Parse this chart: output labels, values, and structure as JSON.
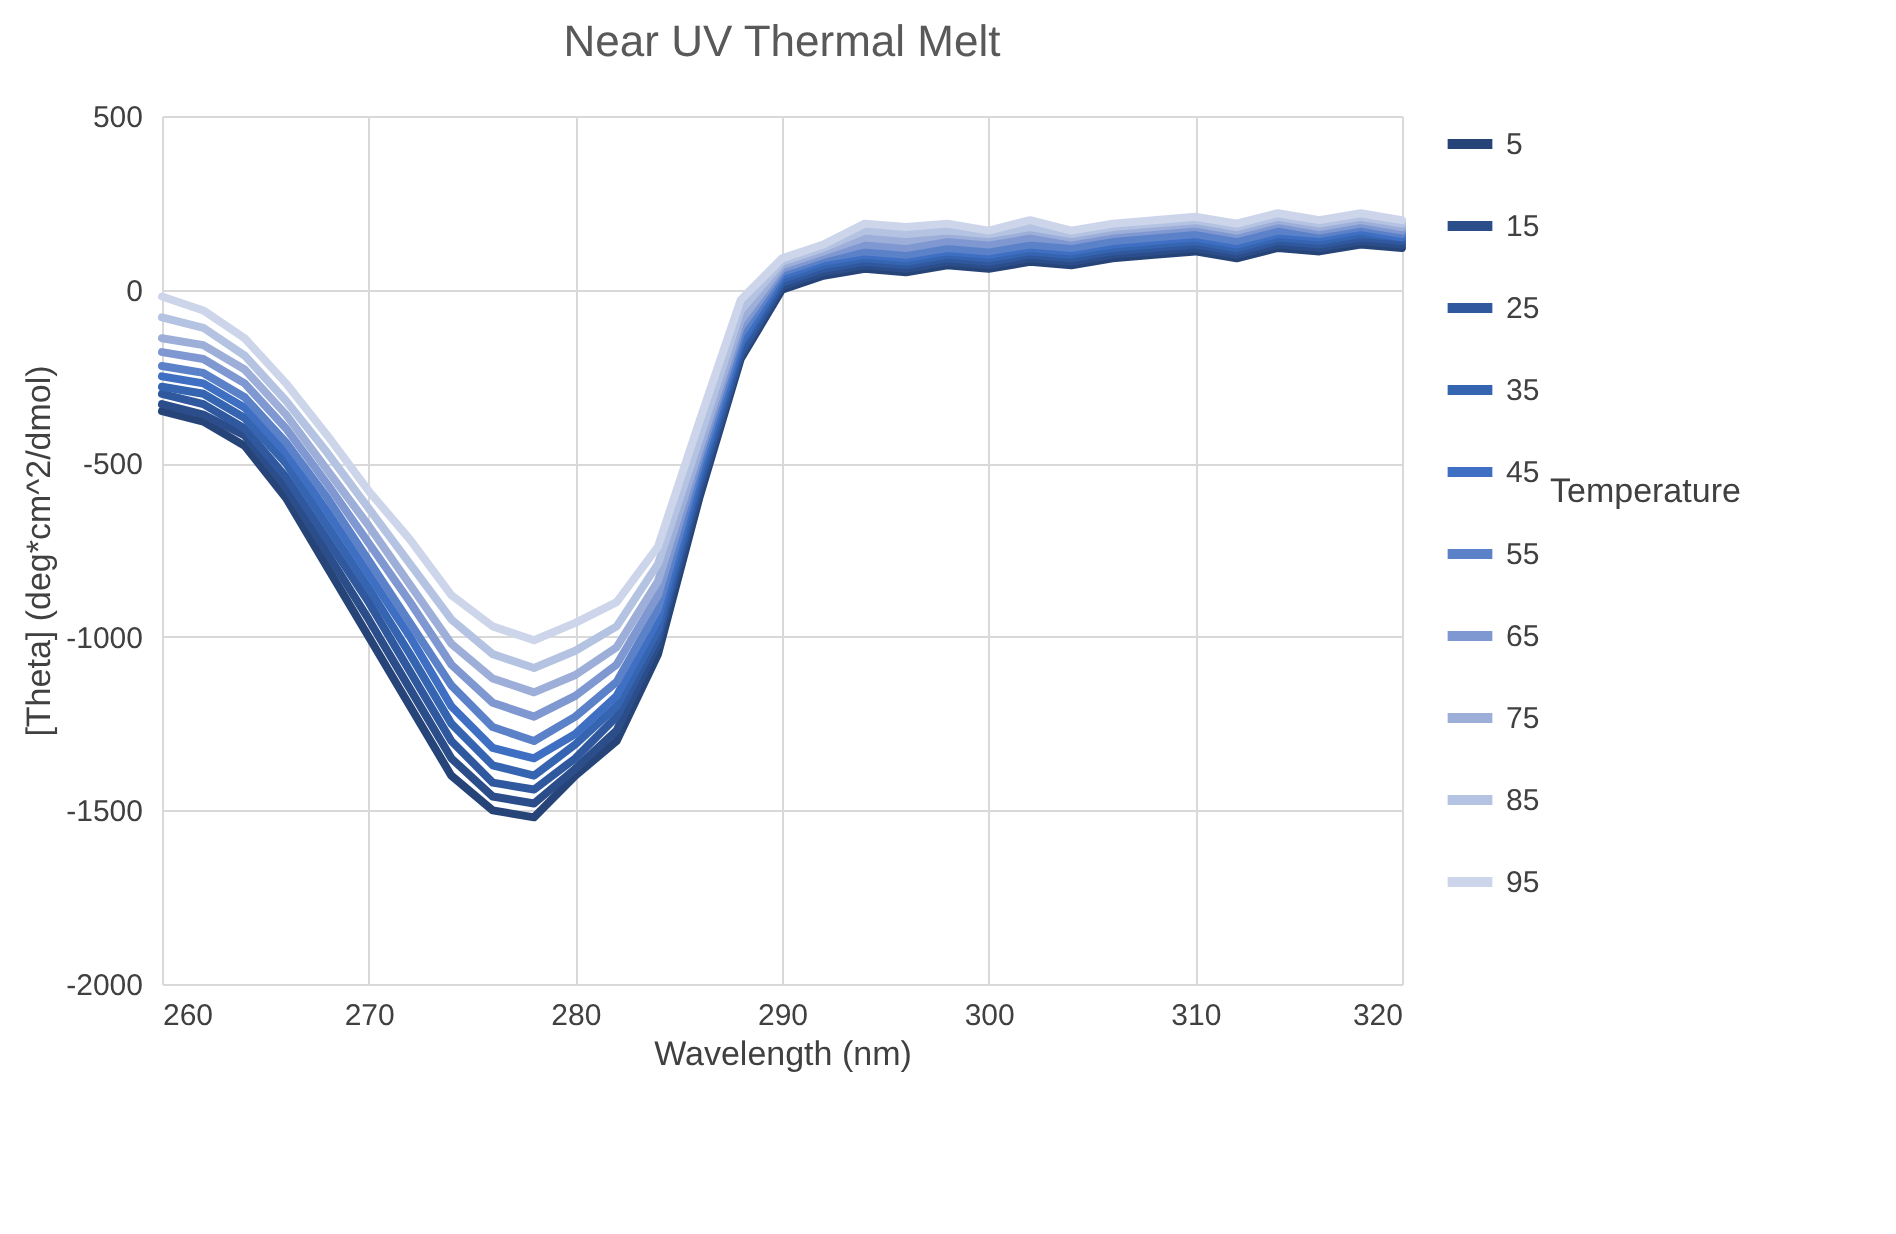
{
  "chart_data": {
    "type": "line",
    "title": "Near UV Thermal Melt",
    "xlabel": "Wavelength (nm)",
    "ylabel": "[Theta] (deg*cm^2/dmol)",
    "legend_title": "Temperature",
    "legend": "right",
    "grid": true,
    "line_style": "solid",
    "marker": "none",
    "xlim": [
      260,
      320
    ],
    "xticks": [
      260,
      270,
      280,
      290,
      300,
      310,
      320
    ],
    "ylim": [
      -2000,
      500
    ],
    "yticks": [
      -2000,
      -1500,
      -1000,
      -500,
      0,
      500
    ],
    "x": [
      260,
      262,
      264,
      266,
      268,
      270,
      272,
      274,
      276,
      278,
      280,
      282,
      284,
      286,
      288,
      290,
      292,
      294,
      296,
      298,
      300,
      302,
      304,
      306,
      308,
      310,
      312,
      314,
      316,
      318,
      320
    ],
    "series": [
      {
        "name": "5",
        "color": "#264478",
        "values": [
          -350,
          -380,
          -450,
          -600,
          -800,
          -1000,
          -1200,
          -1400,
          -1500,
          -1520,
          -1400,
          -1300,
          -1050,
          -600,
          -200,
          0,
          40,
          60,
          50,
          70,
          60,
          80,
          70,
          90,
          100,
          110,
          90,
          120,
          110,
          130,
          120
        ]
      },
      {
        "name": "15",
        "color": "#2b4d8a",
        "values": [
          -330,
          -360,
          -420,
          -570,
          -760,
          -950,
          -1150,
          -1350,
          -1460,
          -1480,
          -1380,
          -1270,
          -1020,
          -580,
          -190,
          10,
          50,
          70,
          60,
          80,
          70,
          90,
          80,
          100,
          110,
          120,
          100,
          130,
          120,
          140,
          130
        ]
      },
      {
        "name": "25",
        "color": "#30589e",
        "values": [
          -300,
          -330,
          -400,
          -540,
          -720,
          -900,
          -1100,
          -1300,
          -1420,
          -1440,
          -1350,
          -1230,
          -1000,
          -560,
          -180,
          20,
          60,
          80,
          70,
          90,
          80,
          100,
          90,
          110,
          120,
          130,
          110,
          140,
          130,
          150,
          140
        ]
      },
      {
        "name": "35",
        "color": "#3564b0",
        "values": [
          -280,
          -300,
          -370,
          -500,
          -680,
          -860,
          -1050,
          -1250,
          -1370,
          -1400,
          -1310,
          -1200,
          -980,
          -540,
          -160,
          30,
          70,
          90,
          80,
          100,
          90,
          110,
          100,
          120,
          130,
          140,
          120,
          150,
          140,
          160,
          150
        ]
      },
      {
        "name": "45",
        "color": "#3e6fc2",
        "values": [
          -250,
          -270,
          -340,
          -470,
          -640,
          -820,
          -1000,
          -1200,
          -1320,
          -1350,
          -1280,
          -1170,
          -950,
          -520,
          -150,
          40,
          80,
          100,
          90,
          110,
          100,
          120,
          110,
          130,
          140,
          150,
          130,
          160,
          150,
          170,
          150
        ]
      },
      {
        "name": "55",
        "color": "#5b81c9",
        "values": [
          -220,
          -240,
          -310,
          -440,
          -600,
          -780,
          -960,
          -1140,
          -1260,
          -1300,
          -1230,
          -1130,
          -920,
          -500,
          -130,
          50,
          90,
          110,
          100,
          120,
          110,
          130,
          120,
          140,
          150,
          160,
          140,
          170,
          160,
          180,
          160
        ]
      },
      {
        "name": "65",
        "color": "#7f98d1",
        "values": [
          -180,
          -200,
          -270,
          -400,
          -560,
          -730,
          -900,
          -1080,
          -1190,
          -1230,
          -1170,
          -1080,
          -880,
          -480,
          -110,
          60,
          100,
          130,
          120,
          140,
          130,
          150,
          140,
          160,
          170,
          180,
          160,
          190,
          170,
          190,
          170
        ]
      },
      {
        "name": "75",
        "color": "#9dafd9",
        "values": [
          -140,
          -160,
          -230,
          -360,
          -520,
          -680,
          -850,
          -1020,
          -1120,
          -1160,
          -1110,
          -1030,
          -840,
          -460,
          -90,
          70,
          110,
          150,
          140,
          160,
          150,
          170,
          150,
          170,
          180,
          190,
          170,
          200,
          180,
          200,
          180
        ]
      },
      {
        "name": "85",
        "color": "#b5c3e2",
        "values": [
          -80,
          -110,
          -190,
          -320,
          -470,
          -630,
          -790,
          -950,
          -1050,
          -1090,
          -1040,
          -970,
          -790,
          -430,
          -60,
          80,
          120,
          170,
          160,
          170,
          160,
          180,
          160,
          180,
          190,
          200,
          180,
          210,
          190,
          210,
          190
        ]
      },
      {
        "name": "95",
        "color": "#cdd5ea",
        "values": [
          -20,
          -60,
          -140,
          -270,
          -420,
          -580,
          -720,
          -880,
          -970,
          -1010,
          -960,
          -900,
          -740,
          -380,
          -30,
          90,
          130,
          190,
          180,
          190,
          170,
          200,
          170,
          190,
          200,
          210,
          190,
          220,
          200,
          220,
          200
        ]
      }
    ]
  }
}
